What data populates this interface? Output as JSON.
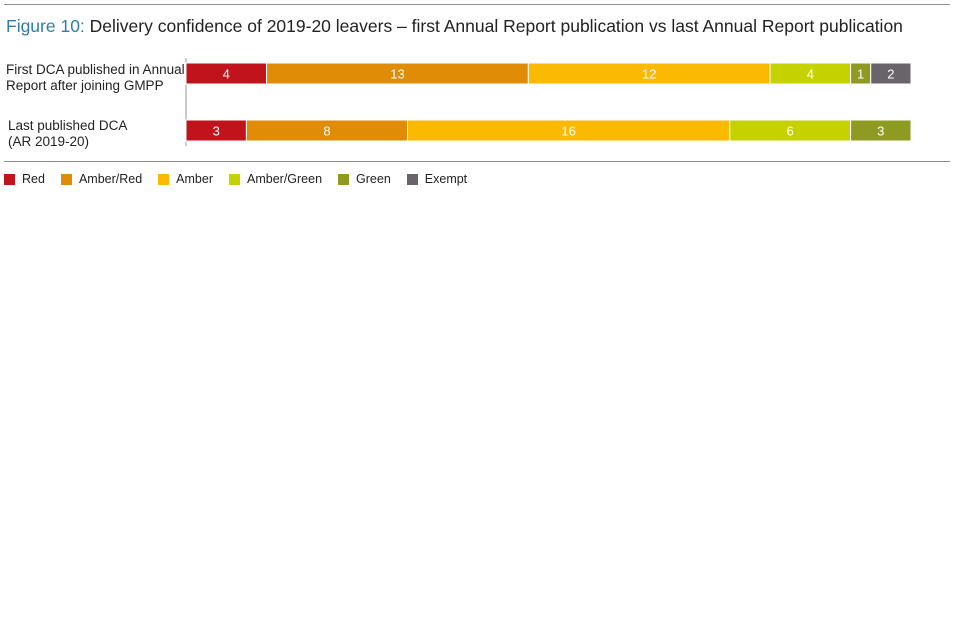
{
  "title": {
    "figure": "Figure 10:",
    "text": " Delivery confidence of 2019-20 leavers – first Annual Report publication vs last Annual Report publication"
  },
  "chart_data": {
    "type": "bar",
    "orientation": "horizontal",
    "stacked": true,
    "categories": [
      [
        "First DCA published in Annual",
        "Report after joining GMPP"
      ],
      [
        "Last published DCA",
        "(AR 2019-20)"
      ]
    ],
    "series": [
      {
        "name": "Red",
        "color": "#c0131b",
        "values": [
          4,
          3
        ]
      },
      {
        "name": "Amber/Red",
        "color": "#e08c06",
        "values": [
          13,
          8
        ]
      },
      {
        "name": "Amber",
        "color": "#fbb900",
        "values": [
          12,
          16
        ]
      },
      {
        "name": "Amber/Green",
        "color": "#c5d200",
        "values": [
          4,
          6
        ]
      },
      {
        "name": "Green",
        "color": "#8f9a23",
        "values": [
          1,
          3
        ]
      },
      {
        "name": "Exempt",
        "color": "#68646a",
        "values": [
          2,
          0
        ]
      }
    ],
    "xlim": [
      0,
      36
    ],
    "grid": false,
    "legend": "bottom-left",
    "data_labels": true
  }
}
